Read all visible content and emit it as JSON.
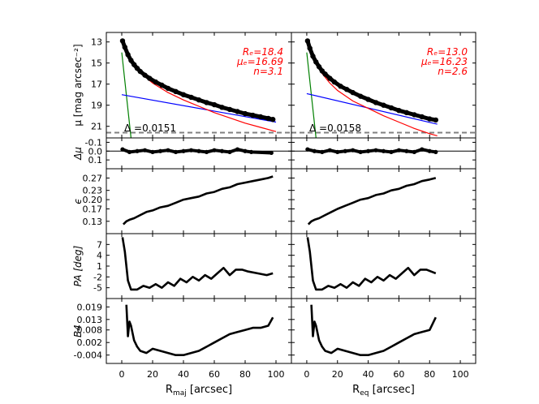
{
  "chart_data": {
    "type": "line",
    "colors": {
      "data": "#000000",
      "sersic": "#ff0000",
      "exponential": "#0000ff",
      "core": "#008000",
      "dashed": "#808080"
    },
    "y_labels": {
      "mu": "μ [mag arcsec⁻²]",
      "dmu": "Δμ",
      "eps": "ϵ",
      "pa": "PA [deg]",
      "b4": "B4"
    },
    "x_labels": {
      "left_main": "R",
      "left_sub": "maj",
      "left_unit": " [arcsec]",
      "right_main": "R",
      "right_sub": "eq",
      "right_unit": " [arcsec]"
    },
    "x_ticks": [
      "0",
      "20",
      "40",
      "60",
      "80",
      "100"
    ],
    "x_range": [
      -10,
      110
    ],
    "rows": {
      "mu": {
        "ylim": [
          22.1,
          12.1
        ],
        "ticks": [
          "13",
          "15",
          "17",
          "19",
          "21"
        ],
        "tick_values": [
          13,
          15,
          17,
          19,
          21
        ],
        "dashed_level": 21.6
      },
      "dmu": {
        "ylim": [
          0.2,
          -0.15
        ],
        "ticks": [
          "-0.1",
          "0.0",
          "0.1"
        ],
        "tick_values": [
          -0.1,
          0.0,
          0.1
        ]
      },
      "eps": {
        "ylim": [
          0.09,
          0.3
        ],
        "ticks": [
          "0.13",
          "0.17",
          "0.20",
          "0.23",
          "0.27"
        ],
        "tick_values": [
          0.13,
          0.17,
          0.2,
          0.23,
          0.27
        ]
      },
      "pa": {
        "ylim": [
          -8,
          10
        ],
        "ticks": [
          "-5",
          "-2",
          "1",
          "4",
          "7"
        ],
        "tick_values": [
          -5,
          -2,
          1,
          4,
          7
        ]
      },
      "b4": {
        "ylim": [
          -0.008,
          0.023
        ],
        "ticks": [
          "-0.004",
          "0.002",
          "0.008",
          "0.013",
          "0.019"
        ],
        "tick_values": [
          -0.004,
          0.002,
          0.008,
          0.013,
          0.019
        ]
      }
    },
    "panels": [
      {
        "name": "left",
        "annotations": {
          "re": "Rₑ=18.4",
          "mue": "μₑ=16.69",
          "n": "n=3.1",
          "delta": "Δ =0.0151"
        },
        "mu_points": [
          [
            0.5,
            12.9
          ],
          [
            2,
            13.5
          ],
          [
            4,
            14.2
          ],
          [
            6,
            14.75
          ],
          [
            8,
            15.15
          ],
          [
            10,
            15.5
          ],
          [
            12,
            15.8
          ],
          [
            15,
            16.15
          ],
          [
            18,
            16.45
          ],
          [
            22,
            16.8
          ],
          [
            26,
            17.1
          ],
          [
            30,
            17.4
          ],
          [
            35,
            17.7
          ],
          [
            40,
            18.0
          ],
          [
            45,
            18.25
          ],
          [
            50,
            18.5
          ],
          [
            55,
            18.75
          ],
          [
            60,
            18.95
          ],
          [
            65,
            19.2
          ],
          [
            70,
            19.4
          ],
          [
            75,
            19.6
          ],
          [
            80,
            19.8
          ],
          [
            85,
            19.95
          ],
          [
            90,
            20.1
          ],
          [
            95,
            20.25
          ],
          [
            98,
            20.35
          ]
        ],
        "sersic": [
          [
            0.5,
            12.9
          ],
          [
            2,
            13.6
          ],
          [
            5,
            14.5
          ],
          [
            10,
            15.6
          ],
          [
            15,
            16.3
          ],
          [
            20,
            16.9
          ],
          [
            30,
            17.8
          ],
          [
            40,
            18.5
          ],
          [
            50,
            19.1
          ],
          [
            60,
            19.7
          ],
          [
            70,
            20.2
          ],
          [
            80,
            20.7
          ],
          [
            90,
            21.1
          ],
          [
            100,
            21.5
          ]
        ],
        "exponential": [
          [
            0,
            18.0
          ],
          [
            100,
            20.6
          ]
        ],
        "core": [
          [
            0,
            14.0
          ],
          [
            6,
            22.1
          ]
        ],
        "dmu": [
          [
            0.5,
            -0.02
          ],
          [
            5,
            0.01
          ],
          [
            10,
            0.0
          ],
          [
            15,
            -0.01
          ],
          [
            20,
            0.01
          ],
          [
            25,
            0.0
          ],
          [
            30,
            -0.01
          ],
          [
            35,
            0.01
          ],
          [
            40,
            0.0
          ],
          [
            45,
            -0.01
          ],
          [
            50,
            0.0
          ],
          [
            55,
            0.01
          ],
          [
            60,
            -0.01
          ],
          [
            65,
            0.0
          ],
          [
            70,
            0.01
          ],
          [
            75,
            -0.02
          ],
          [
            80,
            0.0
          ],
          [
            84,
            0.01
          ],
          [
            97,
            0.02
          ]
        ],
        "eps": [
          [
            1,
            0.12
          ],
          [
            3,
            0.13
          ],
          [
            5,
            0.135
          ],
          [
            8,
            0.14
          ],
          [
            12,
            0.15
          ],
          [
            16,
            0.16
          ],
          [
            20,
            0.165
          ],
          [
            25,
            0.175
          ],
          [
            30,
            0.18
          ],
          [
            35,
            0.19
          ],
          [
            40,
            0.2
          ],
          [
            45,
            0.205
          ],
          [
            50,
            0.21
          ],
          [
            55,
            0.22
          ],
          [
            60,
            0.225
          ],
          [
            65,
            0.235
          ],
          [
            70,
            0.24
          ],
          [
            75,
            0.25
          ],
          [
            80,
            0.255
          ],
          [
            85,
            0.26
          ],
          [
            90,
            0.265
          ],
          [
            95,
            0.27
          ],
          [
            98,
            0.275
          ]
        ],
        "pa": [
          [
            0.5,
            9
          ],
          [
            2,
            5
          ],
          [
            4,
            -3
          ],
          [
            6,
            -5.5
          ],
          [
            10,
            -5.5
          ],
          [
            14,
            -4.5
          ],
          [
            18,
            -5
          ],
          [
            22,
            -4
          ],
          [
            26,
            -5
          ],
          [
            30,
            -3.5
          ],
          [
            34,
            -4.5
          ],
          [
            38,
            -2.5
          ],
          [
            42,
            -3.5
          ],
          [
            46,
            -2
          ],
          [
            50,
            -3
          ],
          [
            54,
            -1.5
          ],
          [
            58,
            -2.5
          ],
          [
            62,
            -1
          ],
          [
            66,
            0.5
          ],
          [
            70,
            -1.5
          ],
          [
            74,
            0
          ],
          [
            78,
            0
          ],
          [
            82,
            -0.5
          ],
          [
            88,
            -1
          ],
          [
            94,
            -1.5
          ],
          [
            98,
            -1
          ]
        ],
        "b4": [
          [
            3,
            0.02
          ],
          [
            4,
            0.005
          ],
          [
            5,
            0.012
          ],
          [
            6,
            0.01
          ],
          [
            8,
            0.003
          ],
          [
            10,
            0.0
          ],
          [
            12,
            -0.002
          ],
          [
            16,
            -0.003
          ],
          [
            20,
            -0.001
          ],
          [
            25,
            -0.002
          ],
          [
            30,
            -0.003
          ],
          [
            35,
            -0.004
          ],
          [
            40,
            -0.004
          ],
          [
            45,
            -0.003
          ],
          [
            50,
            -0.002
          ],
          [
            55,
            0.0
          ],
          [
            60,
            0.002
          ],
          [
            65,
            0.004
          ],
          [
            70,
            0.006
          ],
          [
            75,
            0.007
          ],
          [
            80,
            0.008
          ],
          [
            85,
            0.009
          ],
          [
            90,
            0.009
          ],
          [
            95,
            0.01
          ],
          [
            98,
            0.014
          ]
        ]
      },
      {
        "name": "right",
        "annotations": {
          "re": "Rₑ=13.0",
          "mue": "μₑ=16.23",
          "n": "n=2.6",
          "delta": "Δ =0.0158"
        },
        "mu_points": [
          [
            0.5,
            12.9
          ],
          [
            2,
            13.6
          ],
          [
            4,
            14.35
          ],
          [
            6,
            14.9
          ],
          [
            8,
            15.35
          ],
          [
            10,
            15.75
          ],
          [
            12,
            16.05
          ],
          [
            15,
            16.45
          ],
          [
            18,
            16.8
          ],
          [
            22,
            17.2
          ],
          [
            26,
            17.5
          ],
          [
            30,
            17.8
          ],
          [
            35,
            18.15
          ],
          [
            40,
            18.45
          ],
          [
            45,
            18.75
          ],
          [
            50,
            19.0
          ],
          [
            55,
            19.25
          ],
          [
            60,
            19.5
          ],
          [
            65,
            19.7
          ],
          [
            70,
            19.9
          ],
          [
            75,
            20.1
          ],
          [
            80,
            20.3
          ],
          [
            84,
            20.4
          ]
        ],
        "sersic": [
          [
            0.5,
            12.9
          ],
          [
            3,
            14.2
          ],
          [
            6,
            15.1
          ],
          [
            10,
            16.0
          ],
          [
            15,
            16.9
          ],
          [
            20,
            17.6
          ],
          [
            30,
            18.6
          ],
          [
            40,
            19.3
          ],
          [
            50,
            20.0
          ],
          [
            60,
            20.6
          ],
          [
            70,
            21.2
          ],
          [
            80,
            21.7
          ],
          [
            85,
            21.9
          ]
        ],
        "exponential": [
          [
            0,
            17.9
          ],
          [
            85,
            20.8
          ]
        ],
        "core": [
          [
            0,
            14.0
          ],
          [
            6,
            22.1
          ]
        ],
        "dmu": [
          [
            0.5,
            -0.02
          ],
          [
            5,
            0.0
          ],
          [
            10,
            0.01
          ],
          [
            15,
            -0.01
          ],
          [
            20,
            0.01
          ],
          [
            25,
            0.0
          ],
          [
            30,
            -0.01
          ],
          [
            35,
            0.01
          ],
          [
            40,
            0.0
          ],
          [
            45,
            -0.01
          ],
          [
            50,
            0.0
          ],
          [
            55,
            0.01
          ],
          [
            60,
            -0.01
          ],
          [
            65,
            0.0
          ],
          [
            70,
            0.01
          ],
          [
            75,
            -0.02
          ],
          [
            80,
            0.0
          ],
          [
            84,
            0.01
          ]
        ],
        "eps": [
          [
            1,
            0.12
          ],
          [
            3,
            0.13
          ],
          [
            5,
            0.135
          ],
          [
            8,
            0.14
          ],
          [
            12,
            0.15
          ],
          [
            16,
            0.16
          ],
          [
            20,
            0.17
          ],
          [
            25,
            0.18
          ],
          [
            30,
            0.19
          ],
          [
            35,
            0.2
          ],
          [
            40,
            0.205
          ],
          [
            45,
            0.215
          ],
          [
            50,
            0.22
          ],
          [
            55,
            0.23
          ],
          [
            60,
            0.235
          ],
          [
            65,
            0.245
          ],
          [
            70,
            0.25
          ],
          [
            75,
            0.26
          ],
          [
            80,
            0.265
          ],
          [
            84,
            0.27
          ]
        ],
        "pa": [
          [
            0.5,
            9
          ],
          [
            2,
            5
          ],
          [
            4,
            -3
          ],
          [
            6,
            -5.5
          ],
          [
            10,
            -5.5
          ],
          [
            14,
            -4.5
          ],
          [
            18,
            -5
          ],
          [
            22,
            -4
          ],
          [
            26,
            -5
          ],
          [
            30,
            -3.5
          ],
          [
            34,
            -4.5
          ],
          [
            38,
            -2.5
          ],
          [
            42,
            -3.5
          ],
          [
            46,
            -2
          ],
          [
            50,
            -3
          ],
          [
            54,
            -1.5
          ],
          [
            58,
            -2.5
          ],
          [
            62,
            -1
          ],
          [
            66,
            0.5
          ],
          [
            70,
            -1.5
          ],
          [
            74,
            0
          ],
          [
            78,
            0
          ],
          [
            84,
            -1
          ]
        ],
        "b4": [
          [
            3,
            0.02
          ],
          [
            4,
            0.005
          ],
          [
            5,
            0.012
          ],
          [
            6,
            0.01
          ],
          [
            8,
            0.003
          ],
          [
            10,
            0.0
          ],
          [
            12,
            -0.002
          ],
          [
            16,
            -0.003
          ],
          [
            20,
            -0.001
          ],
          [
            25,
            -0.002
          ],
          [
            30,
            -0.003
          ],
          [
            35,
            -0.004
          ],
          [
            40,
            -0.004
          ],
          [
            45,
            -0.003
          ],
          [
            50,
            -0.002
          ],
          [
            55,
            0.0
          ],
          [
            60,
            0.002
          ],
          [
            65,
            0.004
          ],
          [
            70,
            0.006
          ],
          [
            75,
            0.007
          ],
          [
            80,
            0.008
          ],
          [
            84,
            0.014
          ]
        ]
      }
    ]
  }
}
